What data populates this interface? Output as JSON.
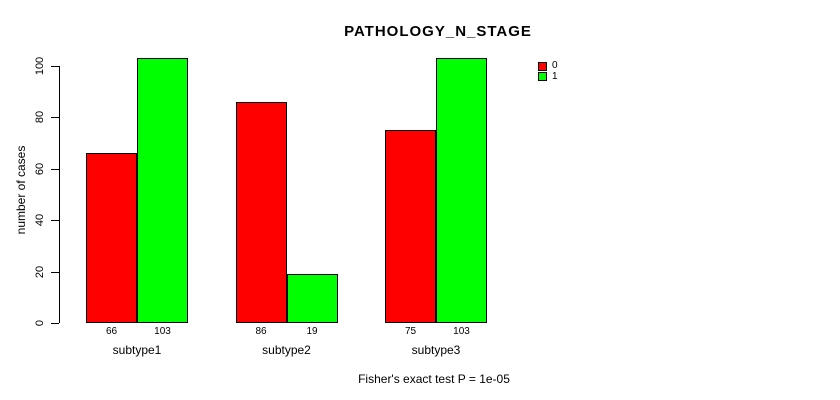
{
  "chart_data": {
    "type": "bar",
    "title": "PATHOLOGY_N_STAGE",
    "xlabel": "",
    "ylabel": "number of cases",
    "categories": [
      "subtype1",
      "subtype2",
      "subtype3"
    ],
    "series": [
      {
        "name": "0",
        "color": "#ff0000",
        "values": [
          66,
          86,
          75
        ]
      },
      {
        "name": "1",
        "color": "#00ff00",
        "values": [
          103,
          19,
          103
        ]
      }
    ],
    "ylim": [
      0,
      100
    ],
    "yticks": [
      0,
      20,
      40,
      60,
      80,
      100
    ],
    "bar_value_labels": [
      [
        66,
        86,
        75
      ],
      [
        103,
        19,
        103
      ]
    ],
    "grid": false,
    "legend_position": "top-right",
    "annotation": "Fisher's exact test P = 1e-05"
  }
}
